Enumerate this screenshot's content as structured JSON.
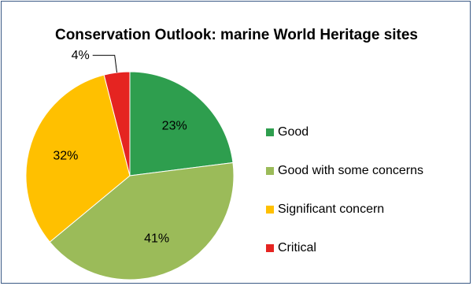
{
  "chart_data": {
    "type": "pie",
    "title": "Conservation Outlook: marine World Heritage sites",
    "categories": [
      "Good",
      "Good with some concerns",
      "Significant concern",
      "Critical"
    ],
    "values": [
      23,
      41,
      32,
      4
    ],
    "data_labels": [
      "23%",
      "41%",
      "32%",
      "4%"
    ],
    "colors": [
      "#2e9e4e",
      "#9bbb59",
      "#ffc000",
      "#e52421"
    ],
    "start_angle_deg": 0,
    "direction": "clockwise",
    "legend_position": "right",
    "grid": false
  }
}
